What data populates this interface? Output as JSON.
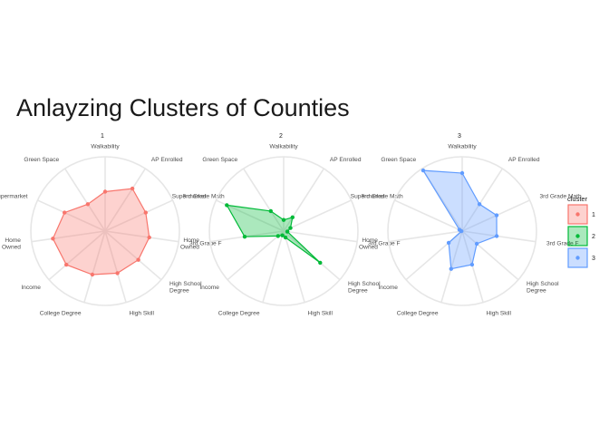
{
  "title": "Anlayzing Clusters of Counties",
  "chart_data": {
    "type": "radar",
    "title": "Anlayzing Clusters of Counties",
    "axes": [
      "Walkability",
      "AP Enrolled",
      "3rd Grade Math",
      "3rd Grade F",
      "High School\nDegree",
      "High Skill",
      "College Degree",
      "Income",
      "Home\nOwned",
      "Supermarket",
      "Green Space"
    ],
    "rlim": [
      0,
      1
    ],
    "legend": {
      "title": "cluster",
      "position": "right"
    },
    "series": [
      {
        "name": "1",
        "color": "#F8766D",
        "values": [
          0.53,
          0.68,
          0.6,
          0.6,
          0.59,
          0.59,
          0.61,
          0.69,
          0.71,
          0.6,
          0.43
        ]
      },
      {
        "name": "2",
        "color": "#00BA38",
        "values": [
          0.15,
          0.22,
          0.1,
          0.05,
          0.65,
          0.09,
          0.06,
          0.1,
          0.53,
          0.84,
          0.32
        ]
      },
      {
        "name": "3",
        "color": "#619CFF",
        "values": [
          0.78,
          0.43,
          0.51,
          0.47,
          0.26,
          0.47,
          0.53,
          0.24,
          0.01,
          0.04,
          0.97
        ]
      }
    ]
  }
}
